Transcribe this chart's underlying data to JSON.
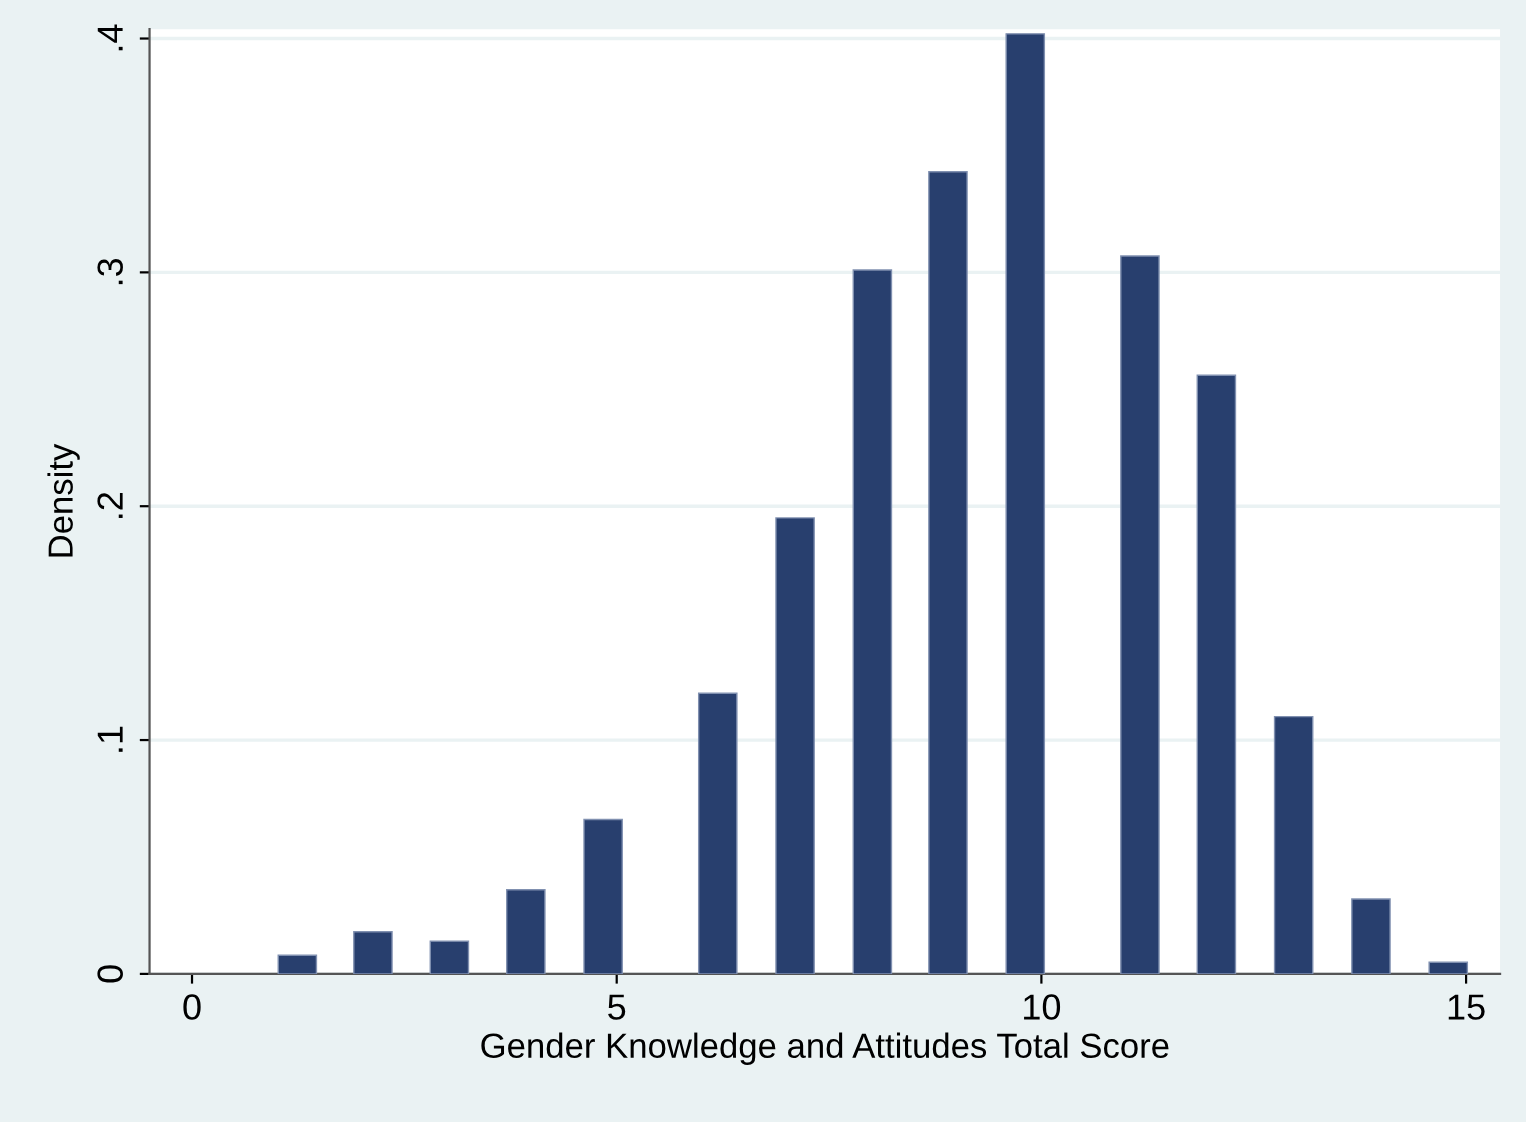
{
  "chart_data": {
    "type": "bar",
    "xlabel": "Gender Knowledge and Attitudes Total Score",
    "ylabel": "Density",
    "x": [
      1.24,
      2.13,
      3.03,
      3.93,
      4.84,
      6.19,
      7.1,
      8.01,
      8.9,
      9.81,
      11.16,
      12.06,
      12.97,
      13.88,
      14.79
    ],
    "values": [
      0.008,
      0.018,
      0.014,
      0.036,
      0.066,
      0.12,
      0.195,
      0.301,
      0.343,
      0.402,
      0.307,
      0.256,
      0.11,
      0.032,
      0.005
    ],
    "color": "#283f6e",
    "xlim": [
      -0.5,
      15.4
    ],
    "xticks": [
      0,
      5,
      10,
      15
    ],
    "ylim": [
      0,
      0.404
    ],
    "yticks": [
      {
        "value": 0,
        "label": "0"
      },
      {
        "value": 0.1,
        "label": ".1"
      },
      {
        "value": 0.2,
        "label": ".2"
      },
      {
        "value": 0.3,
        "label": ".3"
      },
      {
        "value": 0.4,
        "label": ".4"
      }
    ],
    "grid": "y"
  }
}
